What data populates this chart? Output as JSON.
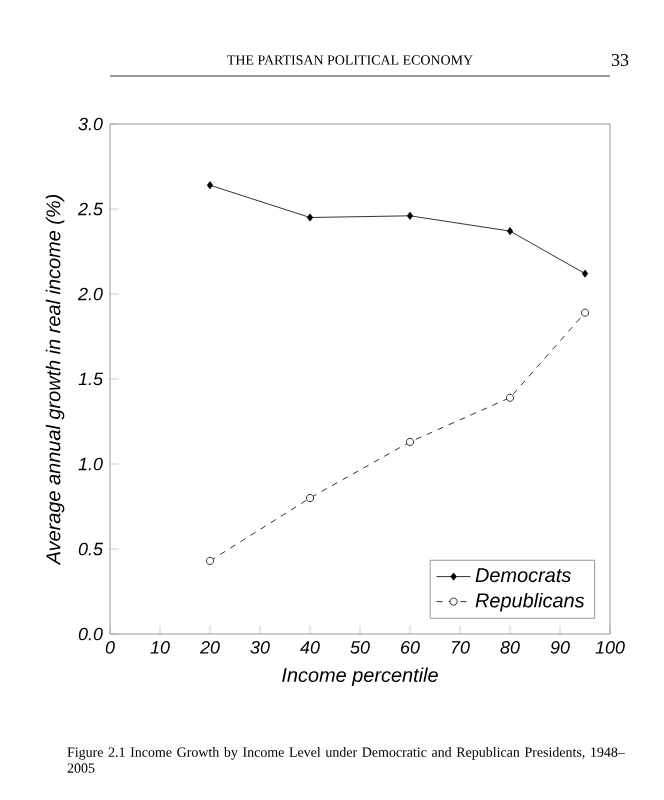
{
  "chart_data": {
    "type": "line",
    "xlabel": "Income percentile",
    "ylabel": "Average annual growth in real income (%)",
    "annotations": [
      "THE PARTISAN POLITICAL ECONOMY",
      "33",
      "Figure 2.1 Income Growth by Income Level under Democratic and Republican Presidents, 1948–2005"
    ],
    "x": [
      20,
      40,
      60,
      80,
      95
    ],
    "series": [
      {
        "name": "Democrats",
        "color": "#000000",
        "marker": "diamond",
        "line_style": "solid",
        "values": [
          2.64,
          2.45,
          2.46,
          2.37,
          2.12
        ]
      },
      {
        "name": "Republicans",
        "color": "#000000",
        "marker": "circle",
        "line_style": "dashed",
        "values": [
          0.43,
          0.8,
          1.13,
          1.39,
          1.89
        ]
      }
    ],
    "xlim": [
      0,
      100
    ],
    "xticks": [
      0,
      10,
      20,
      30,
      40,
      50,
      60,
      70,
      80,
      90,
      100
    ],
    "ylim": [
      0,
      3.0
    ],
    "yticks": [
      {
        "value": 0,
        "label": "0.0"
      },
      {
        "value": 0.5,
        "label": "0.5"
      },
      {
        "value": 1.0,
        "label": "1.0"
      },
      {
        "value": 1.5,
        "label": "1.5"
      },
      {
        "value": 2.0,
        "label": "2.0"
      },
      {
        "value": 2.5,
        "label": "2.5"
      },
      {
        "value": 3.0,
        "label": "3.0"
      }
    ],
    "legend": "bottom right",
    "grid": false
  }
}
